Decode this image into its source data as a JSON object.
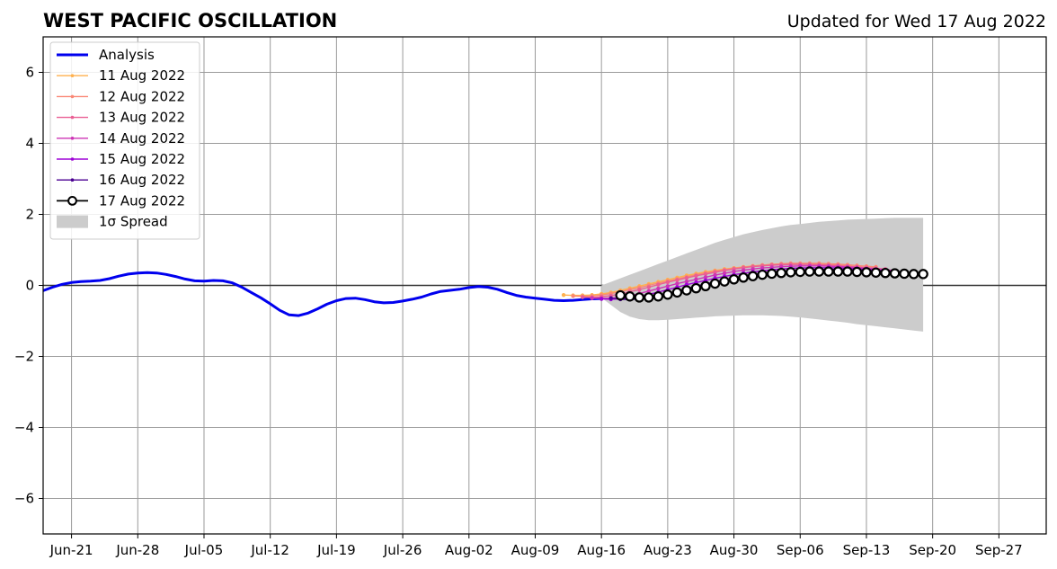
{
  "header": {
    "title": "WEST PACIFIC OSCILLATION",
    "updated": "Updated for Wed 17 Aug 2022"
  },
  "chart_data": {
    "type": "line",
    "xlabel": "",
    "ylabel": "",
    "xlim": [
      "2022-06-18",
      "2022-10-02"
    ],
    "ylim": [
      -7,
      7
    ],
    "grid": true,
    "legend_position": "top-left",
    "x_ticks": [
      "Jun-21",
      "Jun-28",
      "Jul-05",
      "Jul-12",
      "Jul-19",
      "Jul-26",
      "Aug-02",
      "Aug-09",
      "Aug-16",
      "Aug-23",
      "Aug-30",
      "Sep-06",
      "Sep-13",
      "Sep-20",
      "Sep-27"
    ],
    "x_tick_dates": [
      "2022-06-21",
      "2022-06-28",
      "2022-07-05",
      "2022-07-12",
      "2022-07-19",
      "2022-07-26",
      "2022-08-02",
      "2022-08-09",
      "2022-08-16",
      "2022-08-23",
      "2022-08-30",
      "2022-09-06",
      "2022-09-13",
      "2022-09-20",
      "2022-09-27"
    ],
    "y_ticks": [
      -6,
      -4,
      -2,
      0,
      2,
      4,
      6
    ],
    "y_tick_labels": [
      "−6",
      "−4",
      "−2",
      "0",
      "2",
      "4",
      "6"
    ],
    "analysis": {
      "name": "Analysis",
      "color": "#0000ee",
      "x": [
        "2022-06-18",
        "2022-06-19",
        "2022-06-20",
        "2022-06-21",
        "2022-06-22",
        "2022-06-23",
        "2022-06-24",
        "2022-06-25",
        "2022-06-26",
        "2022-06-27",
        "2022-06-28",
        "2022-06-29",
        "2022-06-30",
        "2022-07-01",
        "2022-07-02",
        "2022-07-03",
        "2022-07-04",
        "2022-07-05",
        "2022-07-06",
        "2022-07-07",
        "2022-07-08",
        "2022-07-09",
        "2022-07-10",
        "2022-07-11",
        "2022-07-12",
        "2022-07-13",
        "2022-07-14",
        "2022-07-15",
        "2022-07-16",
        "2022-07-17",
        "2022-07-18",
        "2022-07-19",
        "2022-07-20",
        "2022-07-21",
        "2022-07-22",
        "2022-07-23",
        "2022-07-24",
        "2022-07-25",
        "2022-07-26",
        "2022-07-27",
        "2022-07-28",
        "2022-07-29",
        "2022-07-30",
        "2022-07-31",
        "2022-08-01",
        "2022-08-02",
        "2022-08-03",
        "2022-08-04",
        "2022-08-05",
        "2022-08-06",
        "2022-08-07",
        "2022-08-08",
        "2022-08-09",
        "2022-08-10",
        "2022-08-11",
        "2022-08-12",
        "2022-08-13",
        "2022-08-14",
        "2022-08-15",
        "2022-08-16"
      ],
      "y": [
        -0.15,
        -0.05,
        0.03,
        0.08,
        0.11,
        0.12,
        0.14,
        0.19,
        0.26,
        0.32,
        0.35,
        0.36,
        0.35,
        0.31,
        0.25,
        0.18,
        0.13,
        0.12,
        0.14,
        0.13,
        0.07,
        -0.05,
        -0.2,
        -0.35,
        -0.52,
        -0.7,
        -0.83,
        -0.85,
        -0.78,
        -0.66,
        -0.53,
        -0.43,
        -0.37,
        -0.36,
        -0.4,
        -0.46,
        -0.49,
        -0.48,
        -0.44,
        -0.39,
        -0.33,
        -0.24,
        -0.17,
        -0.14,
        -0.11,
        -0.06,
        -0.03,
        -0.05,
        -0.11,
        -0.2,
        -0.28,
        -0.33,
        -0.36,
        -0.39,
        -0.42,
        -0.43,
        -0.42,
        -0.4,
        -0.38,
        -0.37
      ]
    },
    "forecasts": [
      {
        "name": "11 Aug 2022",
        "color": "#ffb14e",
        "start": "2022-08-12",
        "y": [
          -0.27,
          -0.28,
          -0.28,
          -0.27,
          -0.24,
          -0.2,
          -0.14,
          -0.08,
          -0.02,
          0.04,
          0.1,
          0.16,
          0.22,
          0.28,
          0.33,
          0.38,
          0.42,
          0.46,
          0.49,
          0.52,
          0.55,
          0.57,
          0.59,
          0.6,
          0.61,
          0.61,
          0.61,
          0.6,
          0.59,
          0.57,
          0.55,
          0.52,
          0.5
        ]
      },
      {
        "name": "12 Aug 2022",
        "color": "#fa8775",
        "start": "2022-08-13",
        "y": [
          -0.3,
          -0.31,
          -0.3,
          -0.27,
          -0.23,
          -0.18,
          -0.12,
          -0.06,
          0.0,
          0.06,
          0.12,
          0.18,
          0.24,
          0.3,
          0.35,
          0.4,
          0.44,
          0.48,
          0.51,
          0.54,
          0.57,
          0.59,
          0.61,
          0.62,
          0.62,
          0.62,
          0.62,
          0.61,
          0.6,
          0.58,
          0.56,
          0.54,
          0.52
        ]
      },
      {
        "name": "13 Aug 2022",
        "color": "#ea5f94",
        "start": "2022-08-14",
        "y": [
          -0.33,
          -0.34,
          -0.32,
          -0.29,
          -0.24,
          -0.18,
          -0.12,
          -0.05,
          0.02,
          0.09,
          0.15,
          0.21,
          0.27,
          0.32,
          0.37,
          0.42,
          0.46,
          0.5,
          0.53,
          0.55,
          0.57,
          0.58,
          0.59,
          0.59,
          0.59,
          0.58,
          0.57,
          0.56,
          0.54,
          0.52,
          0.5,
          0.48,
          0.46
        ]
      },
      {
        "name": "14 Aug 2022",
        "color": "#cd34b5",
        "start": "2022-08-15",
        "y": [
          -0.36,
          -0.37,
          -0.36,
          -0.33,
          -0.29,
          -0.23,
          -0.16,
          -0.09,
          -0.02,
          0.05,
          0.11,
          0.17,
          0.23,
          0.29,
          0.34,
          0.39,
          0.43,
          0.46,
          0.49,
          0.51,
          0.53,
          0.54,
          0.55,
          0.55,
          0.55,
          0.54,
          0.53,
          0.52,
          0.5,
          0.48,
          0.46,
          0.44,
          0.42
        ]
      },
      {
        "name": "15 Aug 2022",
        "color": "#9d02d7",
        "start": "2022-08-16",
        "y": [
          -0.38,
          -0.39,
          -0.38,
          -0.35,
          -0.31,
          -0.25,
          -0.19,
          -0.12,
          -0.05,
          0.02,
          0.08,
          0.14,
          0.2,
          0.25,
          0.3,
          0.34,
          0.38,
          0.41,
          0.44,
          0.46,
          0.48,
          0.49,
          0.5,
          0.5,
          0.5,
          0.49,
          0.48,
          0.47,
          0.45,
          0.43,
          0.41,
          0.39,
          0.37
        ]
      },
      {
        "name": "16 Aug 2022",
        "color": "#4b0092",
        "start": "2022-08-17",
        "y": [
          -0.36,
          -0.39,
          -0.4,
          -0.38,
          -0.34,
          -0.29,
          -0.23,
          -0.16,
          -0.09,
          -0.02,
          0.04,
          0.1,
          0.16,
          0.21,
          0.26,
          0.3,
          0.33,
          0.36,
          0.39,
          0.41,
          0.43,
          0.44,
          0.45,
          0.45,
          0.45,
          0.44,
          0.43,
          0.42,
          0.4,
          0.38,
          0.36,
          0.34,
          0.32
        ]
      },
      {
        "name": "17 Aug 2022",
        "color": "#000000",
        "start": "2022-08-18",
        "y": [
          -0.28,
          -0.31,
          -0.34,
          -0.34,
          -0.31,
          -0.26,
          -0.2,
          -0.14,
          -0.08,
          -0.02,
          0.05,
          0.11,
          0.17,
          0.22,
          0.26,
          0.3,
          0.33,
          0.35,
          0.37,
          0.38,
          0.39,
          0.39,
          0.39,
          0.39,
          0.39,
          0.38,
          0.37,
          0.36,
          0.35,
          0.34,
          0.33,
          0.32,
          0.32
        ]
      }
    ],
    "spread": {
      "name": "1σ Spread",
      "color": "#cccccc",
      "start": "2022-08-16",
      "upper": [
        0.0,
        0.1,
        0.2,
        0.3,
        0.4,
        0.5,
        0.6,
        0.7,
        0.8,
        0.9,
        1.0,
        1.1,
        1.2,
        1.28,
        1.36,
        1.44,
        1.5,
        1.56,
        1.61,
        1.66,
        1.7,
        1.73,
        1.76,
        1.79,
        1.81,
        1.83,
        1.85,
        1.86,
        1.87,
        1.88,
        1.89,
        1.9,
        1.9,
        1.9,
        1.9
      ],
      "lower": [
        -0.35,
        -0.55,
        -0.75,
        -0.88,
        -0.95,
        -0.98,
        -0.98,
        -0.97,
        -0.95,
        -0.93,
        -0.91,
        -0.89,
        -0.87,
        -0.86,
        -0.85,
        -0.84,
        -0.84,
        -0.84,
        -0.85,
        -0.86,
        -0.88,
        -0.9,
        -0.93,
        -0.96,
        -0.99,
        -1.02,
        -1.05,
        -1.09,
        -1.12,
        -1.15,
        -1.18,
        -1.21,
        -1.24,
        -1.27,
        -1.3
      ]
    }
  }
}
